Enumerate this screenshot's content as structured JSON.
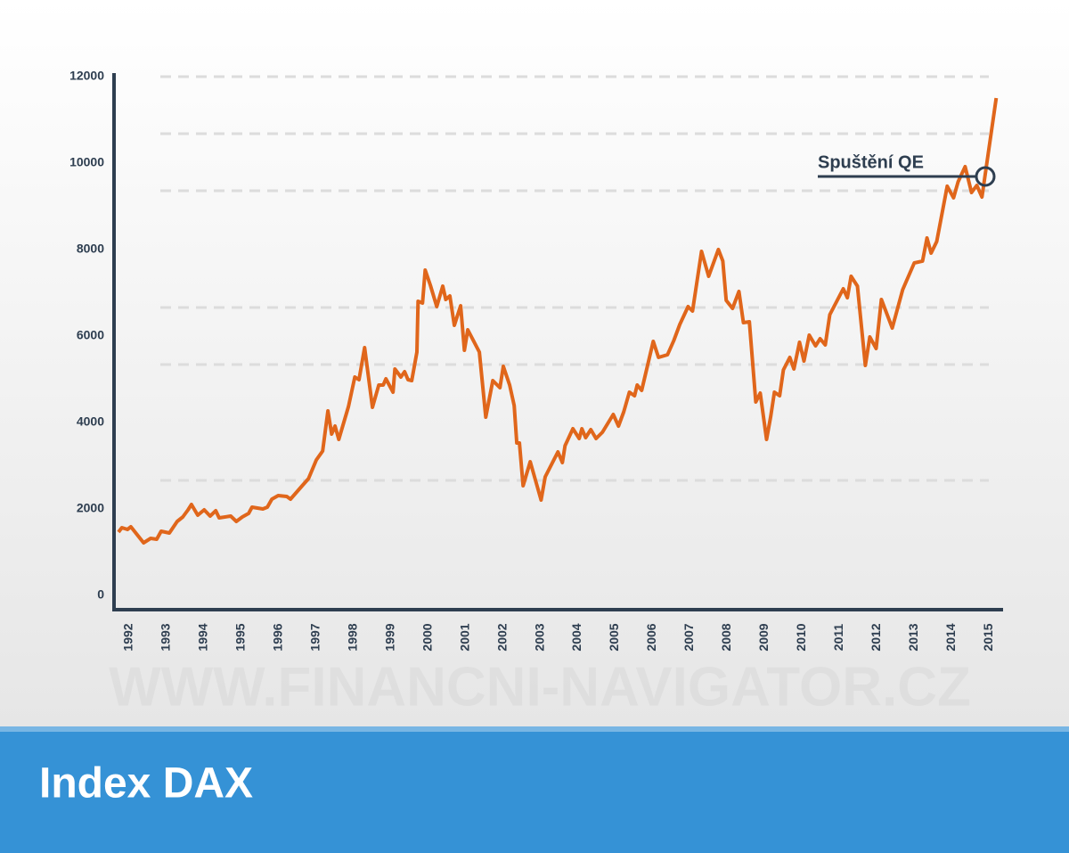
{
  "chart_data": {
    "type": "line",
    "title": "Index DAX",
    "watermark": "WWW.FINANCNI-NAVIGATOR.CZ",
    "annotation": "Spuštění QE",
    "color": "#e0661b",
    "xlim": [
      1991.6,
      2015.35
    ],
    "xticks": [
      1992,
      1993,
      1994,
      1995,
      1996,
      1997,
      1998,
      1999,
      2000,
      2001,
      2002,
      2003,
      2004,
      2005,
      2006,
      2007,
      2008,
      2009,
      2010,
      2011,
      2012,
      2013,
      2014,
      2015
    ],
    "ylim": [
      -330,
      12000
    ],
    "yticks": [
      0,
      2000,
      4000,
      6000,
      8000,
      10000,
      12000
    ],
    "x": [
      1991.72,
      1991.81,
      1991.96,
      1992.05,
      1992.39,
      1992.58,
      1992.74,
      1992.86,
      1993.08,
      1993.29,
      1993.44,
      1993.58,
      1993.67,
      1993.84,
      1994.01,
      1994.17,
      1994.32,
      1994.41,
      1994.72,
      1994.87,
      1995.03,
      1995.2,
      1995.29,
      1995.58,
      1995.7,
      1995.82,
      1995.99,
      1996.22,
      1996.32,
      1996.63,
      1996.8,
      1997.01,
      1997.18,
      1997.32,
      1997.42,
      1997.51,
      1997.61,
      1997.87,
      1998.04,
      1998.15,
      1998.3,
      1998.51,
      1998.68,
      1998.8,
      1998.87,
      1999.06,
      1999.11,
      1999.27,
      1999.37,
      1999.46,
      1999.56,
      1999.7,
      1999.73,
      1999.85,
      1999.92,
      2000.06,
      2000.23,
      2000.39,
      2000.47,
      2000.58,
      2000.7,
      2000.87,
      2000.97,
      2001.06,
      2001.37,
      2001.54,
      2001.73,
      2001.92,
      2002.01,
      2002.18,
      2002.3,
      2002.37,
      2002.44,
      2002.54,
      2002.73,
      2003.02,
      2003.13,
      2003.47,
      2003.59,
      2003.66,
      2003.87,
      2004.04,
      2004.11,
      2004.21,
      2004.35,
      2004.49,
      2004.66,
      2004.95,
      2005.09,
      2005.23,
      2005.38,
      2005.52,
      2005.59,
      2005.71,
      2006.02,
      2006.16,
      2006.4,
      2006.57,
      2006.73,
      2006.95,
      2007.07,
      2007.31,
      2007.5,
      2007.76,
      2007.88,
      2007.97,
      2008.14,
      2008.31,
      2008.43,
      2008.59,
      2008.76,
      2008.88,
      2009.05,
      2009.16,
      2009.26,
      2009.4,
      2009.5,
      2009.67,
      2009.78,
      2009.93,
      2010.05,
      2010.19,
      2010.36,
      2010.48,
      2010.62,
      2010.74,
      2011.1,
      2011.21,
      2011.31,
      2011.48,
      2011.69,
      2011.81,
      2011.98,
      2012.12,
      2012.41,
      2012.69,
      2013.0,
      2013.22,
      2013.34,
      2013.45,
      2013.6,
      2013.88,
      2014.05,
      2014.17,
      2014.36,
      2014.53,
      2014.67,
      2014.81,
      2015.19
    ],
    "values": [
      1464,
      1567,
      1526,
      1588,
      1217,
      1320,
      1299,
      1485,
      1443,
      1711,
      1815,
      1980,
      2103,
      1856,
      1980,
      1835,
      1959,
      1794,
      1835,
      1711,
      1815,
      1897,
      2041,
      2000,
      2041,
      2227,
      2309,
      2289,
      2227,
      2536,
      2701,
      3134,
      3340,
      4268,
      3732,
      3918,
      3609,
      4371,
      5052,
      4990,
      5732,
      4351,
      4866,
      4866,
      5011,
      4701,
      5237,
      5052,
      5176,
      4990,
      4969,
      5629,
      6805,
      6763,
      7526,
      7176,
      6681,
      7155,
      6846,
      6928,
      6248,
      6702,
      5671,
      6145,
      5629,
      4124,
      4969,
      4804,
      5299,
      4866,
      4392,
      3526,
      3526,
      2536,
      3093,
      2206,
      2742,
      3320,
      3072,
      3464,
      3856,
      3629,
      3856,
      3650,
      3835,
      3629,
      3773,
      4186,
      3918,
      4248,
      4701,
      4619,
      4866,
      4743,
      5877,
      5506,
      5567,
      5897,
      6268,
      6681,
      6578,
      7959,
      7382,
      8001,
      7733,
      6825,
      6640,
      7031,
      6310,
      6330,
      4475,
      4681,
      3609,
      4145,
      4701,
      4619,
      5217,
      5506,
      5237,
      5856,
      5423,
      6021,
      5774,
      5939,
      5794,
      6495,
      7093,
      6887,
      7382,
      7155,
      5320,
      5980,
      5712,
      6846,
      6186,
      7073,
      7691,
      7733,
      8269,
      7918,
      8186,
      9465,
      9197,
      9568,
      9918,
      9320,
      9485,
      9217,
      11506
    ]
  }
}
